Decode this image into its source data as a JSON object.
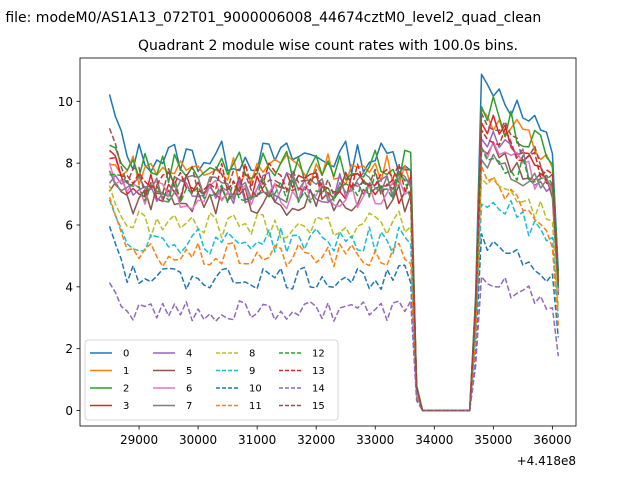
{
  "figure": {
    "suptitle": "n file: modeM0/AS1A13_072T01_9000006008_44674cztM0_level2_quad_clean",
    "offset_text": "+4.418e8"
  },
  "chart_data": {
    "type": "line",
    "title": "Quadrant 2 module wise count rates with 100.0s bins.",
    "xlabel": "",
    "ylabel": "",
    "x_offset": 441800000,
    "xlim": [
      28000,
      36400
    ],
    "ylim": [
      -0.5,
      11.4
    ],
    "xticks": [
      29000,
      30000,
      31000,
      32000,
      33000,
      34000,
      35000,
      36000
    ],
    "xtick_labels": [
      "29000",
      "30000",
      "31000",
      "32000",
      "33000",
      "34000",
      "35000",
      "36000"
    ],
    "yticks": [
      0,
      2,
      4,
      6,
      8,
      10
    ],
    "ytick_labels": [
      "0",
      "2",
      "4",
      "6",
      "8",
      "10"
    ],
    "grid": false,
    "legend_position": "lower-left",
    "legend_columns": 4,
    "series": [
      {
        "name": "0",
        "color": "#1f77b4",
        "dashed": false,
        "level": 8.2,
        "start": 10.1,
        "peak": 10.8
      },
      {
        "name": "1",
        "color": "#ff7f0e",
        "dashed": false,
        "level": 7.8,
        "start": 7.9,
        "peak": 9.7
      },
      {
        "name": "2",
        "color": "#2ca02c",
        "dashed": false,
        "level": 7.9,
        "start": 8.6,
        "peak": 9.8
      },
      {
        "name": "3",
        "color": "#d62728",
        "dashed": false,
        "level": 7.2,
        "start": 8.5,
        "peak": 9.3
      },
      {
        "name": "4",
        "color": "#9467bd",
        "dashed": false,
        "level": 7.2,
        "start": 7.5,
        "peak": 8.8
      },
      {
        "name": "5",
        "color": "#8c564b",
        "dashed": false,
        "level": 6.8,
        "start": 7.3,
        "peak": 8.5
      },
      {
        "name": "6",
        "color": "#e377c2",
        "dashed": false,
        "level": 7.0,
        "start": 7.8,
        "peak": 8.6
      },
      {
        "name": "7",
        "color": "#7f7f7f",
        "dashed": false,
        "level": 7.2,
        "start": 7.6,
        "peak": 8.2
      },
      {
        "name": "8",
        "color": "#bcbd22",
        "dashed": true,
        "level": 6.0,
        "start": 7.2,
        "peak": 7.6
      },
      {
        "name": "9",
        "color": "#17becf",
        "dashed": true,
        "level": 5.5,
        "start": 6.8,
        "peak": 6.8
      },
      {
        "name": "10",
        "color": "#1f77b4",
        "dashed": true,
        "level": 4.3,
        "start": 6.0,
        "peak": 5.6
      },
      {
        "name": "11",
        "color": "#ff7f0e",
        "dashed": true,
        "level": 5.0,
        "start": 7.0,
        "peak": 7.8
      },
      {
        "name": "12",
        "color": "#2ca02c",
        "dashed": true,
        "level": 7.2,
        "start": 7.8,
        "peak": 8.4
      },
      {
        "name": "13",
        "color": "#d62728",
        "dashed": true,
        "level": 7.5,
        "start": 8.4,
        "peak": 9.0
      },
      {
        "name": "14",
        "color": "#9467bd",
        "dashed": true,
        "level": 3.2,
        "start": 4.0,
        "peak": 4.3
      },
      {
        "name": "15",
        "color": "#8c564b",
        "dashed": true,
        "level": 7.4,
        "start": 9.0,
        "peak": 9.6
      }
    ]
  }
}
